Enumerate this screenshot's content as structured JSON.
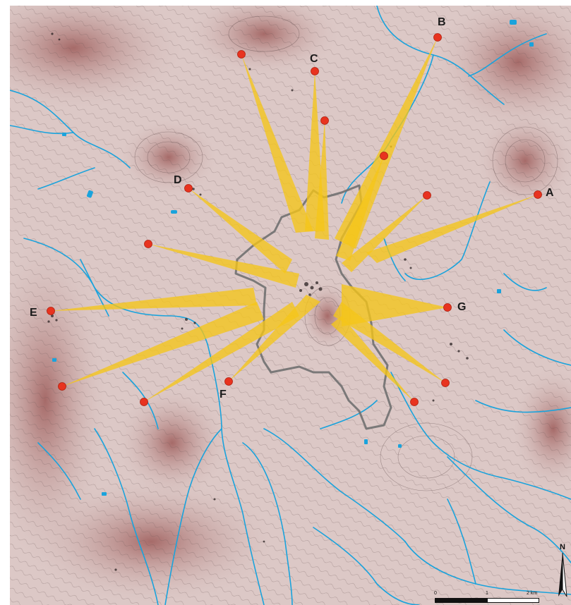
{
  "map": {
    "site_labels": {
      "A": "A",
      "B": "B",
      "C": "C",
      "D": "D",
      "E": "E",
      "F": "F",
      "G": "G"
    },
    "north_label": "N",
    "scale_bar": {
      "ticks": [
        "0",
        "1",
        "2 km"
      ]
    },
    "colors": {
      "terrain": "#d9c4c2",
      "terrain_dark": "#a86e6c",
      "contour": "#5a4a4a",
      "water": "#1aa3dc",
      "sightline": "#f5c518",
      "site_marker": "#e8331f",
      "boundary": "#707070"
    }
  }
}
